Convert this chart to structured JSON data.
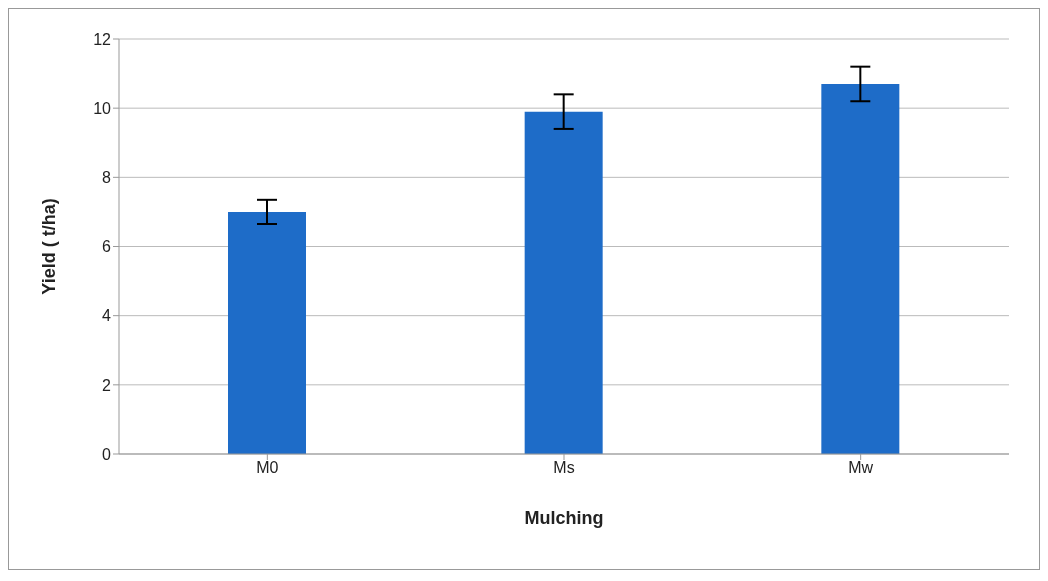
{
  "chart_data": {
    "type": "bar",
    "xlabel": "Mulching",
    "ylabel": "Yield ( t/ha)",
    "categories": [
      "M0",
      "Ms",
      "Mw"
    ],
    "values": [
      7.0,
      9.9,
      10.7
    ],
    "errors": [
      0.35,
      0.5,
      0.5
    ],
    "color": "#1e6cc8",
    "ylim": [
      0,
      12
    ],
    "yticks": [
      0,
      2,
      4,
      6,
      8,
      10,
      12
    ],
    "grid": "y"
  }
}
